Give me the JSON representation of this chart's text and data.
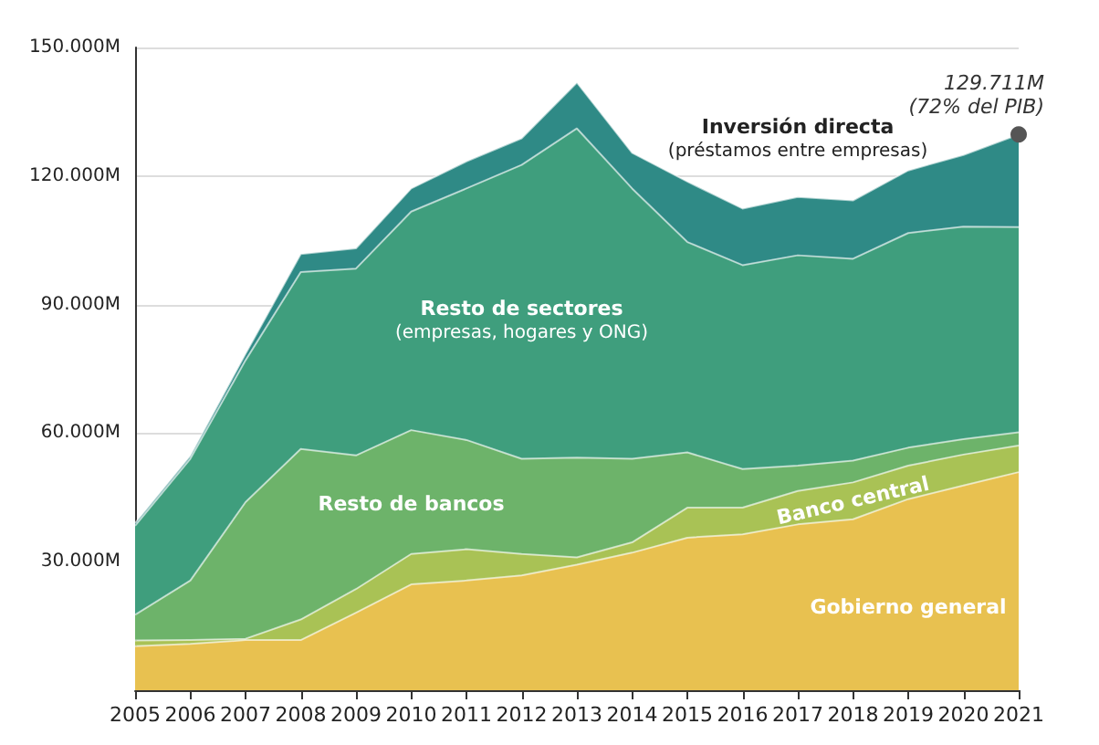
{
  "chart_data": {
    "type": "area",
    "stacked": true,
    "categories": [
      "2005",
      "2006",
      "2007",
      "2008",
      "2009",
      "2010",
      "2011",
      "2012",
      "2013",
      "2014",
      "2015",
      "2016",
      "2017",
      "2018",
      "2019",
      "2020",
      "2021"
    ],
    "series": [
      {
        "name": "Gobierno general",
        "color": "#e8c150",
        "values": [
          10.3,
          10.8,
          11.7,
          11.7,
          18.1,
          24.7,
          25.6,
          26.8,
          29.3,
          32.1,
          35.6,
          36.4,
          38.7,
          39.9,
          44.6,
          47.8,
          50.9
        ]
      },
      {
        "name": "Banco central",
        "color": "#a9c255",
        "values": [
          1.3,
          0.9,
          0.3,
          4.8,
          5.5,
          7.1,
          7.3,
          5.0,
          1.7,
          2.4,
          7.0,
          6.2,
          7.8,
          8.6,
          7.8,
          7.2,
          6.2
        ]
      },
      {
        "name": "Resto de bancos",
        "color": "#6db36a",
        "values": [
          6.0,
          13.9,
          31.9,
          39.8,
          31.2,
          28.9,
          25.5,
          22.2,
          23.3,
          19.5,
          12.9,
          9.0,
          5.9,
          5.1,
          4.2,
          3.6,
          3.1
        ]
      },
      {
        "name": "Resto de sectores (empresas, hogares y ONG)",
        "color": "#3f9e7d",
        "values": [
          20.8,
          28.4,
          33.1,
          41.3,
          43.6,
          51.0,
          58.7,
          68.6,
          76.8,
          63.1,
          49.1,
          47.6,
          49.1,
          47.1,
          50.1,
          49.6,
          47.9
        ]
      },
      {
        "name": "Inversión directa (préstamos entre empresas)",
        "color": "#2f8a86",
        "values": [
          0.6,
          0.7,
          1.5,
          4.2,
          4.7,
          5.4,
          6.3,
          6.2,
          10.7,
          8.3,
          14.1,
          13.2,
          13.6,
          13.6,
          14.6,
          16.7,
          21.6
        ]
      }
    ],
    "ylim": [
      0,
      150
    ],
    "yticks": [
      {
        "value": 30,
        "label": "30.000M"
      },
      {
        "value": 60,
        "label": "60.000M"
      },
      {
        "value": 90,
        "label": "90.000M"
      },
      {
        "value": 120,
        "label": "120.000M"
      },
      {
        "value": 150,
        "label": "150.000M"
      }
    ],
    "grid": "y",
    "legend": false,
    "annotations": [
      {
        "text": "129.711M (72% del PIB)",
        "x": "2021",
        "y": 129.711
      }
    ]
  }
}
